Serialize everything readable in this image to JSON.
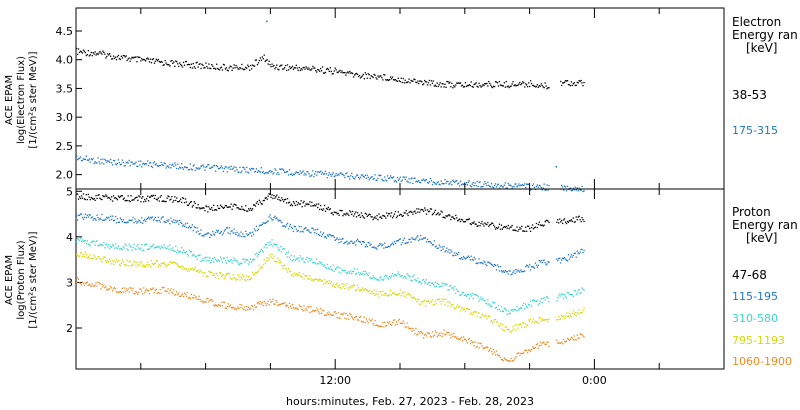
{
  "xlabel": "hours:minutes, Feb. 27, 2023 - Feb. 28, 2023",
  "x_ticks": [
    {
      "label": "12:00",
      "hour": 12
    },
    {
      "label": "0:00",
      "hour": 24
    }
  ],
  "x_range_hours": [
    0,
    30
  ],
  "chart_data": [
    {
      "type": "scatter",
      "panel": "electron",
      "ylabel_lines": [
        "ACE EPAM",
        "log(Electron Flux)",
        "[1/(cm²s ster MeV)]"
      ],
      "ylim": [
        1.75,
        4.9
      ],
      "y_ticks": [
        "2.0",
        "2.5",
        "3.0",
        "3.5",
        "4.0",
        "4.5"
      ],
      "legend_title": [
        "Electron",
        "Energy ran",
        "[keV]"
      ],
      "series": [
        {
          "name": "38-53",
          "color": "#000000",
          "points": [
            [
              0,
              4.15
            ],
            [
              1,
              4.12
            ],
            [
              2,
              4.05
            ],
            [
              3,
              4.0
            ],
            [
              4,
              3.96
            ],
            [
              5,
              3.93
            ],
            [
              6,
              3.9
            ],
            [
              7,
              3.87
            ],
            [
              8,
              3.88
            ],
            [
              8.7,
              4.05
            ],
            [
              9,
              3.9
            ],
            [
              10,
              3.87
            ],
            [
              11,
              3.85
            ],
            [
              12,
              3.81
            ],
            [
              13,
              3.74
            ],
            [
              14,
              3.72
            ],
            [
              15,
              3.67
            ],
            [
              16,
              3.62
            ],
            [
              17,
              3.58
            ],
            [
              18,
              3.57
            ],
            [
              19,
              3.58
            ],
            [
              20,
              3.58
            ],
            [
              21,
              3.59
            ],
            [
              21.8,
              3.55
            ],
            [
              22.5,
              3.62
            ],
            [
              23.5,
              3.6
            ]
          ],
          "gaps": [
            [
              21.9,
              22.4
            ]
          ]
        },
        {
          "name": "175-315",
          "color": "#1f77c8",
          "points": [
            [
              0,
              2.3
            ],
            [
              1,
              2.25
            ],
            [
              2,
              2.22
            ],
            [
              3,
              2.2
            ],
            [
              4,
              2.18
            ],
            [
              5,
              2.15
            ],
            [
              6,
              2.13
            ],
            [
              7,
              2.11
            ],
            [
              8,
              2.09
            ],
            [
              9,
              2.07
            ],
            [
              10,
              2.05
            ],
            [
              11,
              2.03
            ],
            [
              12,
              2.0
            ],
            [
              13,
              1.98
            ],
            [
              14,
              1.96
            ],
            [
              15,
              1.93
            ],
            [
              16,
              1.9
            ],
            [
              17,
              1.88
            ],
            [
              18,
              1.86
            ],
            [
              19,
              1.84
            ],
            [
              20,
              1.82
            ],
            [
              21,
              1.8
            ],
            [
              21.8,
              1.79
            ],
            [
              22.5,
              1.78
            ],
            [
              23.5,
              1.77
            ]
          ],
          "gaps": [
            [
              21.9,
              22.4
            ]
          ]
        }
      ],
      "outliers": [
        {
          "x": 8.8,
          "y": 4.68,
          "series": "175-315"
        },
        {
          "x": 22.2,
          "y": 2.15,
          "series": "175-315"
        }
      ]
    },
    {
      "type": "scatter",
      "panel": "proton",
      "ylabel_lines": [
        "ACE EPAM",
        "log(Proton Flux)",
        "[1/(cm²s ster MeV)]"
      ],
      "ylim": [
        1.1,
        5.05
      ],
      "y_ticks": [
        "2",
        "3",
        "4",
        "5"
      ],
      "legend_title": [
        "Proton",
        "Energy ran",
        "[keV]"
      ],
      "series": [
        {
          "name": "47-68",
          "color": "#000000",
          "points": [
            [
              0,
              4.9
            ],
            [
              1,
              4.88
            ],
            [
              2,
              4.85
            ],
            [
              3,
              4.85
            ],
            [
              4,
              4.86
            ],
            [
              5,
              4.8
            ],
            [
              6,
              4.62
            ],
            [
              7,
              4.7
            ],
            [
              8,
              4.62
            ],
            [
              9,
              4.92
            ],
            [
              10,
              4.75
            ],
            [
              11,
              4.72
            ],
            [
              12,
              4.55
            ],
            [
              13,
              4.5
            ],
            [
              14,
              4.45
            ],
            [
              15,
              4.52
            ],
            [
              16,
              4.6
            ],
            [
              17,
              4.5
            ],
            [
              18,
              4.35
            ],
            [
              19,
              4.28
            ],
            [
              20,
              4.2
            ],
            [
              21,
              4.18
            ],
            [
              21.5,
              4.3
            ],
            [
              22.5,
              4.35
            ],
            [
              23.5,
              4.42
            ]
          ],
          "gaps": [
            [
              21.9,
              22.2
            ]
          ]
        },
        {
          "name": "115-195",
          "color": "#1f77c8",
          "points": [
            [
              0,
              4.45
            ],
            [
              1,
              4.45
            ],
            [
              2,
              4.38
            ],
            [
              3,
              4.37
            ],
            [
              4,
              4.4
            ],
            [
              5,
              4.3
            ],
            [
              6,
              4.05
            ],
            [
              7,
              4.15
            ],
            [
              8,
              4.05
            ],
            [
              9,
              4.45
            ],
            [
              10,
              4.2
            ],
            [
              11,
              4.15
            ],
            [
              12,
              3.95
            ],
            [
              13,
              3.9
            ],
            [
              14,
              3.8
            ],
            [
              15,
              3.9
            ],
            [
              16,
              4.0
            ],
            [
              17,
              3.75
            ],
            [
              18,
              3.55
            ],
            [
              19,
              3.45
            ],
            [
              20,
              3.2
            ],
            [
              21,
              3.35
            ],
            [
              21.5,
              3.45
            ],
            [
              22.5,
              3.5
            ],
            [
              23.5,
              3.7
            ]
          ],
          "gaps": [
            [
              21.9,
              22.2
            ]
          ]
        },
        {
          "name": "310-580",
          "color": "#38d6cf",
          "points": [
            [
              0,
              3.95
            ],
            [
              1,
              3.85
            ],
            [
              2,
              3.8
            ],
            [
              3,
              3.78
            ],
            [
              4,
              3.8
            ],
            [
              5,
              3.7
            ],
            [
              6,
              3.5
            ],
            [
              7,
              3.5
            ],
            [
              8,
              3.45
            ],
            [
              9,
              3.9
            ],
            [
              10,
              3.55
            ],
            [
              11,
              3.5
            ],
            [
              12,
              3.3
            ],
            [
              13,
              3.25
            ],
            [
              14,
              3.1
            ],
            [
              15,
              3.2
            ],
            [
              16,
              3.05
            ],
            [
              17,
              2.95
            ],
            [
              18,
              2.75
            ],
            [
              19,
              2.6
            ],
            [
              20,
              2.35
            ],
            [
              21,
              2.55
            ],
            [
              21.5,
              2.6
            ],
            [
              22.5,
              2.7
            ],
            [
              23.5,
              2.85
            ]
          ],
          "gaps": [
            [
              21.9,
              22.2
            ]
          ]
        },
        {
          "name": "795-1193",
          "color": "#d8d800",
          "points": [
            [
              0,
              3.65
            ],
            [
              1,
              3.55
            ],
            [
              2,
              3.45
            ],
            [
              3,
              3.42
            ],
            [
              4,
              3.43
            ],
            [
              5,
              3.35
            ],
            [
              6,
              3.2
            ],
            [
              7,
              3.15
            ],
            [
              8,
              3.1
            ],
            [
              9,
              3.6
            ],
            [
              10,
              3.2
            ],
            [
              11,
              3.1
            ],
            [
              12,
              2.95
            ],
            [
              13,
              2.9
            ],
            [
              14,
              2.75
            ],
            [
              15,
              2.8
            ],
            [
              16,
              2.55
            ],
            [
              17,
              2.6
            ],
            [
              18,
              2.4
            ],
            [
              19,
              2.25
            ],
            [
              20,
              1.95
            ],
            [
              21,
              2.15
            ],
            [
              21.5,
              2.2
            ],
            [
              22.5,
              2.25
            ],
            [
              23.5,
              2.4
            ]
          ],
          "gaps": [
            [
              21.9,
              22.2
            ]
          ]
        },
        {
          "name": "1060-1900",
          "color": "#f28a1e",
          "points": [
            [
              0,
              3.05
            ],
            [
              1,
              2.95
            ],
            [
              2,
              2.85
            ],
            [
              3,
              2.82
            ],
            [
              4,
              2.85
            ],
            [
              5,
              2.75
            ],
            [
              6,
              2.6
            ],
            [
              7,
              2.5
            ],
            [
              8,
              2.45
            ],
            [
              9,
              2.6
            ],
            [
              10,
              2.5
            ],
            [
              11,
              2.4
            ],
            [
              12,
              2.3
            ],
            [
              13,
              2.25
            ],
            [
              14,
              2.1
            ],
            [
              15,
              2.15
            ],
            [
              16,
              1.85
            ],
            [
              17,
              1.9
            ],
            [
              18,
              1.75
            ],
            [
              19,
              1.55
            ],
            [
              20,
              1.3
            ],
            [
              21,
              1.55
            ],
            [
              21.5,
              1.65
            ],
            [
              22.5,
              1.7
            ],
            [
              23.5,
              1.85
            ]
          ],
          "gaps": [
            [
              21.9,
              22.2
            ]
          ]
        }
      ]
    }
  ]
}
